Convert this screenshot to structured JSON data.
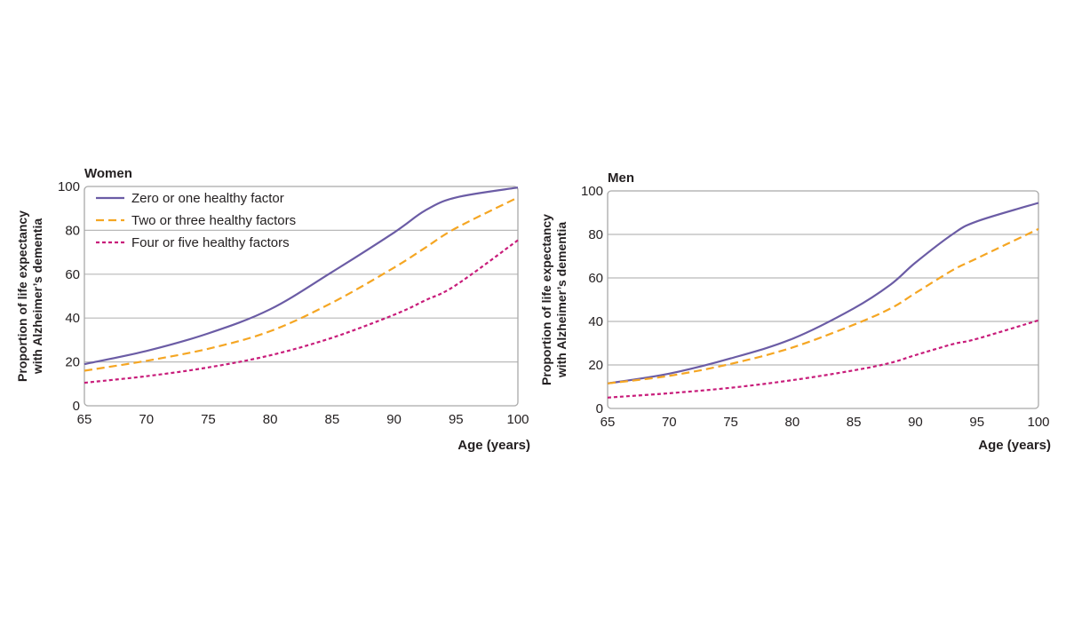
{
  "chart_data": [
    {
      "type": "line",
      "title": "Women",
      "xlabel": "Age (years)",
      "ylabel_lines": [
        "Proportion of life expectancy",
        "with Alzheimer’s dementia"
      ],
      "xlim": [
        65,
        100
      ],
      "ylim": [
        0,
        100
      ],
      "xticks": [
        65,
        70,
        75,
        80,
        85,
        90,
        95,
        100
      ],
      "yticks": [
        0,
        20,
        40,
        60,
        80,
        100
      ],
      "grid": true,
      "legend": "top-left",
      "x": [
        65,
        70,
        75,
        80,
        85,
        90,
        92.5,
        95,
        100
      ],
      "series": [
        {
          "name": "Zero or one healthy factor",
          "style": "solid",
          "color": "#6b5ca5",
          "values": [
            19,
            25,
            33,
            44,
            61,
            79,
            89,
            95,
            99.5
          ]
        },
        {
          "name": "Two or three healthy factors",
          "style": "dashed",
          "color": "#f5a623",
          "values": [
            16,
            20.5,
            26,
            34,
            47,
            63,
            72,
            81,
            95
          ]
        },
        {
          "name": "Four or five healthy factors",
          "style": "dotted",
          "color": "#c81c7a",
          "values": [
            10.5,
            13.5,
            17.5,
            23,
            31,
            41.5,
            48,
            55,
            75.5
          ]
        }
      ]
    },
    {
      "type": "line",
      "title": "Men",
      "xlabel": "Age (years)",
      "ylabel_lines": [
        "Proportion of life expectancy",
        "with Alzheimer’s dementia"
      ],
      "xlim": [
        65,
        100
      ],
      "ylim": [
        0,
        100
      ],
      "xticks": [
        65,
        70,
        75,
        80,
        85,
        90,
        95,
        100
      ],
      "yticks": [
        0,
        20,
        40,
        60,
        80,
        100
      ],
      "grid": true,
      "legend": "none",
      "x": [
        65,
        70,
        75,
        80,
        85,
        88,
        90,
        93,
        95,
        100
      ],
      "series": [
        {
          "name": "Zero or one healthy factor",
          "style": "solid",
          "color": "#6b5ca5",
          "values": [
            11.5,
            16,
            23,
            32,
            46,
            57,
            67,
            80,
            86,
            94.5
          ]
        },
        {
          "name": "Two or three healthy factors",
          "style": "dashed",
          "color": "#f5a623",
          "values": [
            11.5,
            15,
            20.5,
            28,
            38.5,
            46,
            53,
            63.5,
            69,
            82.5
          ]
        },
        {
          "name": "Four or five healthy factors",
          "style": "dotted",
          "color": "#c81c7a",
          "values": [
            5,
            7,
            9.5,
            13,
            17.5,
            21,
            24.5,
            29.5,
            32,
            40.5
          ]
        }
      ]
    }
  ]
}
